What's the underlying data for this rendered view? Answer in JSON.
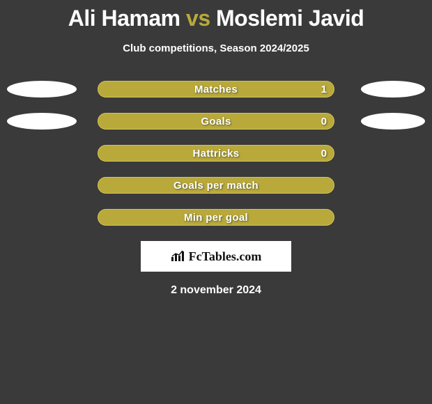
{
  "colors": {
    "background": "#3a3a3a",
    "accent": "#b9a93b",
    "bar_border": "#d2c456",
    "text": "#ffffff",
    "oval": "#ffffff",
    "logo_bg": "#ffffff"
  },
  "title": {
    "player1": "Ali Hamam",
    "vs": "vs",
    "player2": "Moslemi Javid"
  },
  "subtitle": "Club competitions, Season 2024/2025",
  "stats": [
    {
      "label": "Matches",
      "value": "1",
      "show_value": true,
      "show_ovals": true
    },
    {
      "label": "Goals",
      "value": "0",
      "show_value": true,
      "show_ovals": true
    },
    {
      "label": "Hattricks",
      "value": "0",
      "show_value": true,
      "show_ovals": false
    },
    {
      "label": "Goals per match",
      "value": "",
      "show_value": false,
      "show_ovals": false
    },
    {
      "label": "Min per goal",
      "value": "",
      "show_value": false,
      "show_ovals": false
    }
  ],
  "logo": "FcTables.com",
  "date": "2 november 2024"
}
